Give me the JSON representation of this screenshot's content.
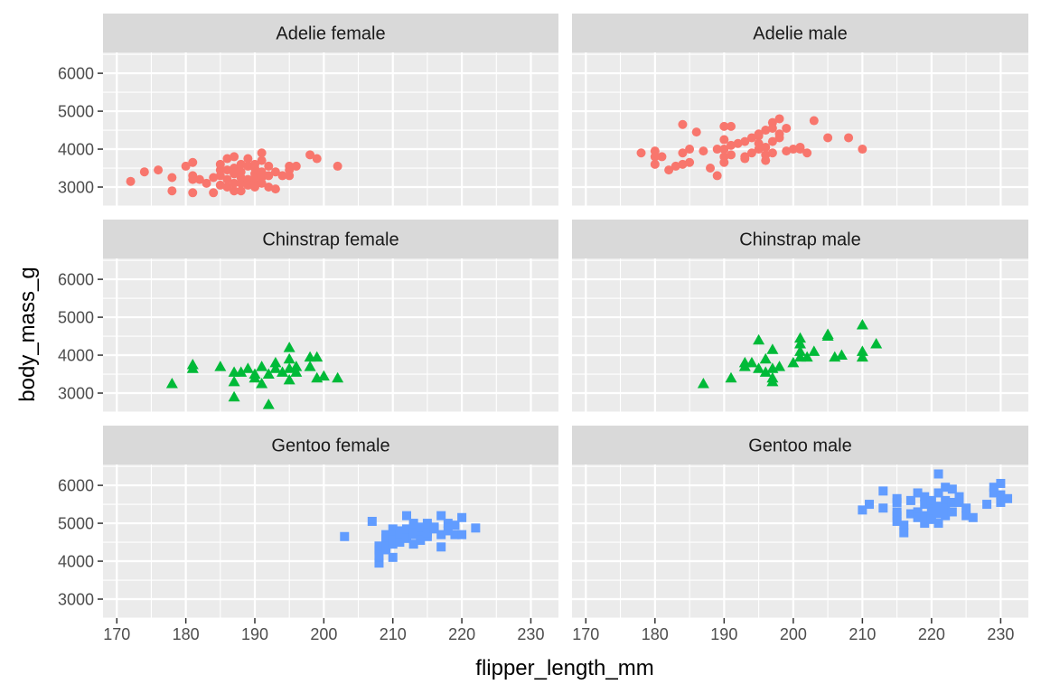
{
  "chart_data": {
    "type": "scatter",
    "xlabel": "flipper_length_mm",
    "ylabel": "body_mass_g",
    "xlim": [
      168,
      234
    ],
    "ylim": [
      2500,
      6550
    ],
    "x_ticks": [
      170,
      180,
      190,
      200,
      210,
      220,
      230
    ],
    "y_ticks": [
      3000,
      4000,
      5000,
      6000
    ],
    "grid": true,
    "legend": "none",
    "colors": {
      "Adelie": "#F8766D",
      "Chinstrap": "#00BA38",
      "Gentoo": "#619CFF"
    },
    "shapes": {
      "Adelie": "circle",
      "Chinstrap": "triangle",
      "Gentoo": "square"
    },
    "facets": [
      {
        "label": "Adelie female",
        "species": "Adelie",
        "points": [
          [
            172,
            3150
          ],
          [
            174,
            3400
          ],
          [
            176,
            3450
          ],
          [
            178,
            3250
          ],
          [
            178,
            2900
          ],
          [
            180,
            3550
          ],
          [
            181,
            3650
          ],
          [
            181,
            3300
          ],
          [
            181,
            3200
          ],
          [
            181,
            2850
          ],
          [
            182,
            3200
          ],
          [
            183,
            3100
          ],
          [
            184,
            3250
          ],
          [
            184,
            2850
          ],
          [
            185,
            3450
          ],
          [
            185,
            3600
          ],
          [
            185,
            3300
          ],
          [
            185,
            3050
          ],
          [
            186,
            3450
          ],
          [
            186,
            3750
          ],
          [
            186,
            3200
          ],
          [
            186,
            3000
          ],
          [
            187,
            3500
          ],
          [
            187,
            3800
          ],
          [
            187,
            3100
          ],
          [
            187,
            2900
          ],
          [
            187,
            3350
          ],
          [
            188,
            3600
          ],
          [
            188,
            3400
          ],
          [
            188,
            3100
          ],
          [
            188,
            3250
          ],
          [
            188,
            2900
          ],
          [
            189,
            3550
          ],
          [
            189,
            3750
          ],
          [
            189,
            3200
          ],
          [
            189,
            3050
          ],
          [
            190,
            3500
          ],
          [
            190,
            3600
          ],
          [
            190,
            3350
          ],
          [
            190,
            3100
          ],
          [
            190,
            3000
          ],
          [
            190,
            3250
          ],
          [
            191,
            3400
          ],
          [
            191,
            3700
          ],
          [
            191,
            3900
          ],
          [
            191,
            3250
          ],
          [
            191,
            3100
          ],
          [
            192,
            3300
          ],
          [
            192,
            3550
          ],
          [
            192,
            3000
          ],
          [
            193,
            3400
          ],
          [
            193,
            2950
          ],
          [
            194,
            3300
          ],
          [
            195,
            3450
          ],
          [
            195,
            3550
          ],
          [
            195,
            3300
          ],
          [
            196,
            3550
          ],
          [
            198,
            3850
          ],
          [
            199,
            3750
          ],
          [
            202,
            3550
          ]
        ]
      },
      {
        "label": "Adelie male",
        "species": "Adelie",
        "points": [
          [
            178,
            3900
          ],
          [
            180,
            3950
          ],
          [
            180,
            3800
          ],
          [
            180,
            3600
          ],
          [
            181,
            3800
          ],
          [
            182,
            3450
          ],
          [
            183,
            3550
          ],
          [
            184,
            4650
          ],
          [
            184,
            3900
          ],
          [
            184,
            3600
          ],
          [
            185,
            4000
          ],
          [
            185,
            3650
          ],
          [
            186,
            4450
          ],
          [
            187,
            3950
          ],
          [
            188,
            3500
          ],
          [
            189,
            4000
          ],
          [
            189,
            3300
          ],
          [
            190,
            4600
          ],
          [
            190,
            4250
          ],
          [
            190,
            4000
          ],
          [
            190,
            3800
          ],
          [
            190,
            3650
          ],
          [
            191,
            4600
          ],
          [
            191,
            4100
          ],
          [
            191,
            3850
          ],
          [
            192,
            4150
          ],
          [
            193,
            3800
          ],
          [
            193,
            4200
          ],
          [
            193,
            3750
          ],
          [
            194,
            4300
          ],
          [
            194,
            3900
          ],
          [
            195,
            4350
          ],
          [
            195,
            4150
          ],
          [
            195,
            4400
          ],
          [
            195,
            4000
          ],
          [
            196,
            4050
          ],
          [
            196,
            3850
          ],
          [
            196,
            4500
          ],
          [
            196,
            3700
          ],
          [
            197,
            4700
          ],
          [
            197,
            4200
          ],
          [
            197,
            3900
          ],
          [
            197,
            4550
          ],
          [
            198,
            4800
          ],
          [
            198,
            4300
          ],
          [
            198,
            4400
          ],
          [
            199,
            4550
          ],
          [
            199,
            3950
          ],
          [
            200,
            4000
          ],
          [
            201,
            4050
          ],
          [
            201,
            4000
          ],
          [
            202,
            3900
          ],
          [
            203,
            4750
          ],
          [
            205,
            4300
          ],
          [
            208,
            4300
          ],
          [
            210,
            4000
          ]
        ]
      },
      {
        "label": "Chinstrap female",
        "species": "Chinstrap",
        "points": [
          [
            178,
            3250
          ],
          [
            181,
            3750
          ],
          [
            181,
            3650
          ],
          [
            185,
            3700
          ],
          [
            187,
            3550
          ],
          [
            187,
            3300
          ],
          [
            187,
            2900
          ],
          [
            188,
            3550
          ],
          [
            189,
            3650
          ],
          [
            190,
            3500
          ],
          [
            190,
            3400
          ],
          [
            191,
            3700
          ],
          [
            191,
            3250
          ],
          [
            192,
            3500
          ],
          [
            192,
            2700
          ],
          [
            193,
            3650
          ],
          [
            193,
            3800
          ],
          [
            194,
            3550
          ],
          [
            195,
            4200
          ],
          [
            195,
            3350
          ],
          [
            195,
            3900
          ],
          [
            195,
            3650
          ],
          [
            196,
            3700
          ],
          [
            196,
            3550
          ],
          [
            198,
            3950
          ],
          [
            198,
            3700
          ],
          [
            199,
            3950
          ],
          [
            199,
            3400
          ],
          [
            200,
            3450
          ],
          [
            202,
            3400
          ]
        ]
      },
      {
        "label": "Chinstrap male",
        "species": "Chinstrap",
        "points": [
          [
            187,
            3250
          ],
          [
            191,
            3400
          ],
          [
            193,
            3800
          ],
          [
            193,
            3700
          ],
          [
            194,
            3800
          ],
          [
            195,
            4400
          ],
          [
            195,
            3650
          ],
          [
            196,
            3900
          ],
          [
            196,
            3550
          ],
          [
            197,
            4150
          ],
          [
            197,
            3650
          ],
          [
            197,
            3400
          ],
          [
            197,
            3300
          ],
          [
            198,
            3700
          ],
          [
            200,
            3800
          ],
          [
            201,
            3950
          ],
          [
            201,
            4100
          ],
          [
            201,
            4300
          ],
          [
            201,
            4450
          ],
          [
            202,
            3950
          ],
          [
            203,
            4100
          ],
          [
            205,
            4550
          ],
          [
            205,
            4500
          ],
          [
            206,
            3950
          ],
          [
            207,
            4000
          ],
          [
            210,
            4800
          ],
          [
            210,
            4100
          ],
          [
            210,
            3950
          ],
          [
            212,
            4300
          ]
        ]
      },
      {
        "label": "Gentoo female",
        "species": "Gentoo",
        "points": [
          [
            203,
            4650
          ],
          [
            207,
            5050
          ],
          [
            208,
            4300
          ],
          [
            208,
            4400
          ],
          [
            208,
            3950
          ],
          [
            208,
            4150
          ],
          [
            209,
            4600
          ],
          [
            209,
            4500
          ],
          [
            209,
            4300
          ],
          [
            209,
            4700
          ],
          [
            209,
            4400
          ],
          [
            210,
            4850
          ],
          [
            210,
            4700
          ],
          [
            210,
            4450
          ],
          [
            210,
            4100
          ],
          [
            210,
            4550
          ],
          [
            211,
            4800
          ],
          [
            211,
            4650
          ],
          [
            211,
            4500
          ],
          [
            212,
            4750
          ],
          [
            212,
            4850
          ],
          [
            212,
            5200
          ],
          [
            212,
            4600
          ],
          [
            213,
            4900
          ],
          [
            213,
            4700
          ],
          [
            213,
            4450
          ],
          [
            213,
            5000
          ],
          [
            214,
            4850
          ],
          [
            214,
            4700
          ],
          [
            214,
            4900
          ],
          [
            214,
            4550
          ],
          [
            215,
            4800
          ],
          [
            215,
            4650
          ],
          [
            215,
            5000
          ],
          [
            215,
            4750
          ],
          [
            216,
            4850
          ],
          [
            216,
            4900
          ],
          [
            217,
            5200
          ],
          [
            217,
            4700
          ],
          [
            217,
            4375
          ],
          [
            218,
            5000
          ],
          [
            218,
            4800
          ],
          [
            219,
            4950
          ],
          [
            219,
            4700
          ],
          [
            220,
            5150
          ],
          [
            220,
            4700
          ],
          [
            222,
            4875
          ]
        ]
      },
      {
        "label": "Gentoo male",
        "species": "Gentoo",
        "points": [
          [
            210,
            5350
          ],
          [
            211,
            5500
          ],
          [
            213,
            5850
          ],
          [
            213,
            5400
          ],
          [
            215,
            5650
          ],
          [
            215,
            5550
          ],
          [
            215,
            5300
          ],
          [
            215,
            5200
          ],
          [
            215,
            5050
          ],
          [
            216,
            4950
          ],
          [
            216,
            4750
          ],
          [
            217,
            5600
          ],
          [
            217,
            5250
          ],
          [
            218,
            5800
          ],
          [
            218,
            5300
          ],
          [
            218,
            5150
          ],
          [
            219,
            5500
          ],
          [
            219,
            5700
          ],
          [
            219,
            5200
          ],
          [
            219,
            5000
          ],
          [
            220,
            5400
          ],
          [
            220,
            5600
          ],
          [
            220,
            5300
          ],
          [
            220,
            5100
          ],
          [
            221,
            6300
          ],
          [
            221,
            5800
          ],
          [
            221,
            5450
          ],
          [
            221,
            5250
          ],
          [
            221,
            5000
          ],
          [
            222,
            5950
          ],
          [
            222,
            5600
          ],
          [
            222,
            5400
          ],
          [
            222,
            5200
          ],
          [
            223,
            5900
          ],
          [
            223,
            5550
          ],
          [
            223,
            5300
          ],
          [
            224,
            5550
          ],
          [
            224,
            5700
          ],
          [
            225,
            5400
          ],
          [
            225,
            5200
          ],
          [
            226,
            5150
          ],
          [
            228,
            5500
          ],
          [
            229,
            5950
          ],
          [
            229,
            5800
          ],
          [
            230,
            6050
          ],
          [
            230,
            5750
          ],
          [
            230,
            5550
          ],
          [
            231,
            5650
          ]
        ]
      }
    ]
  }
}
